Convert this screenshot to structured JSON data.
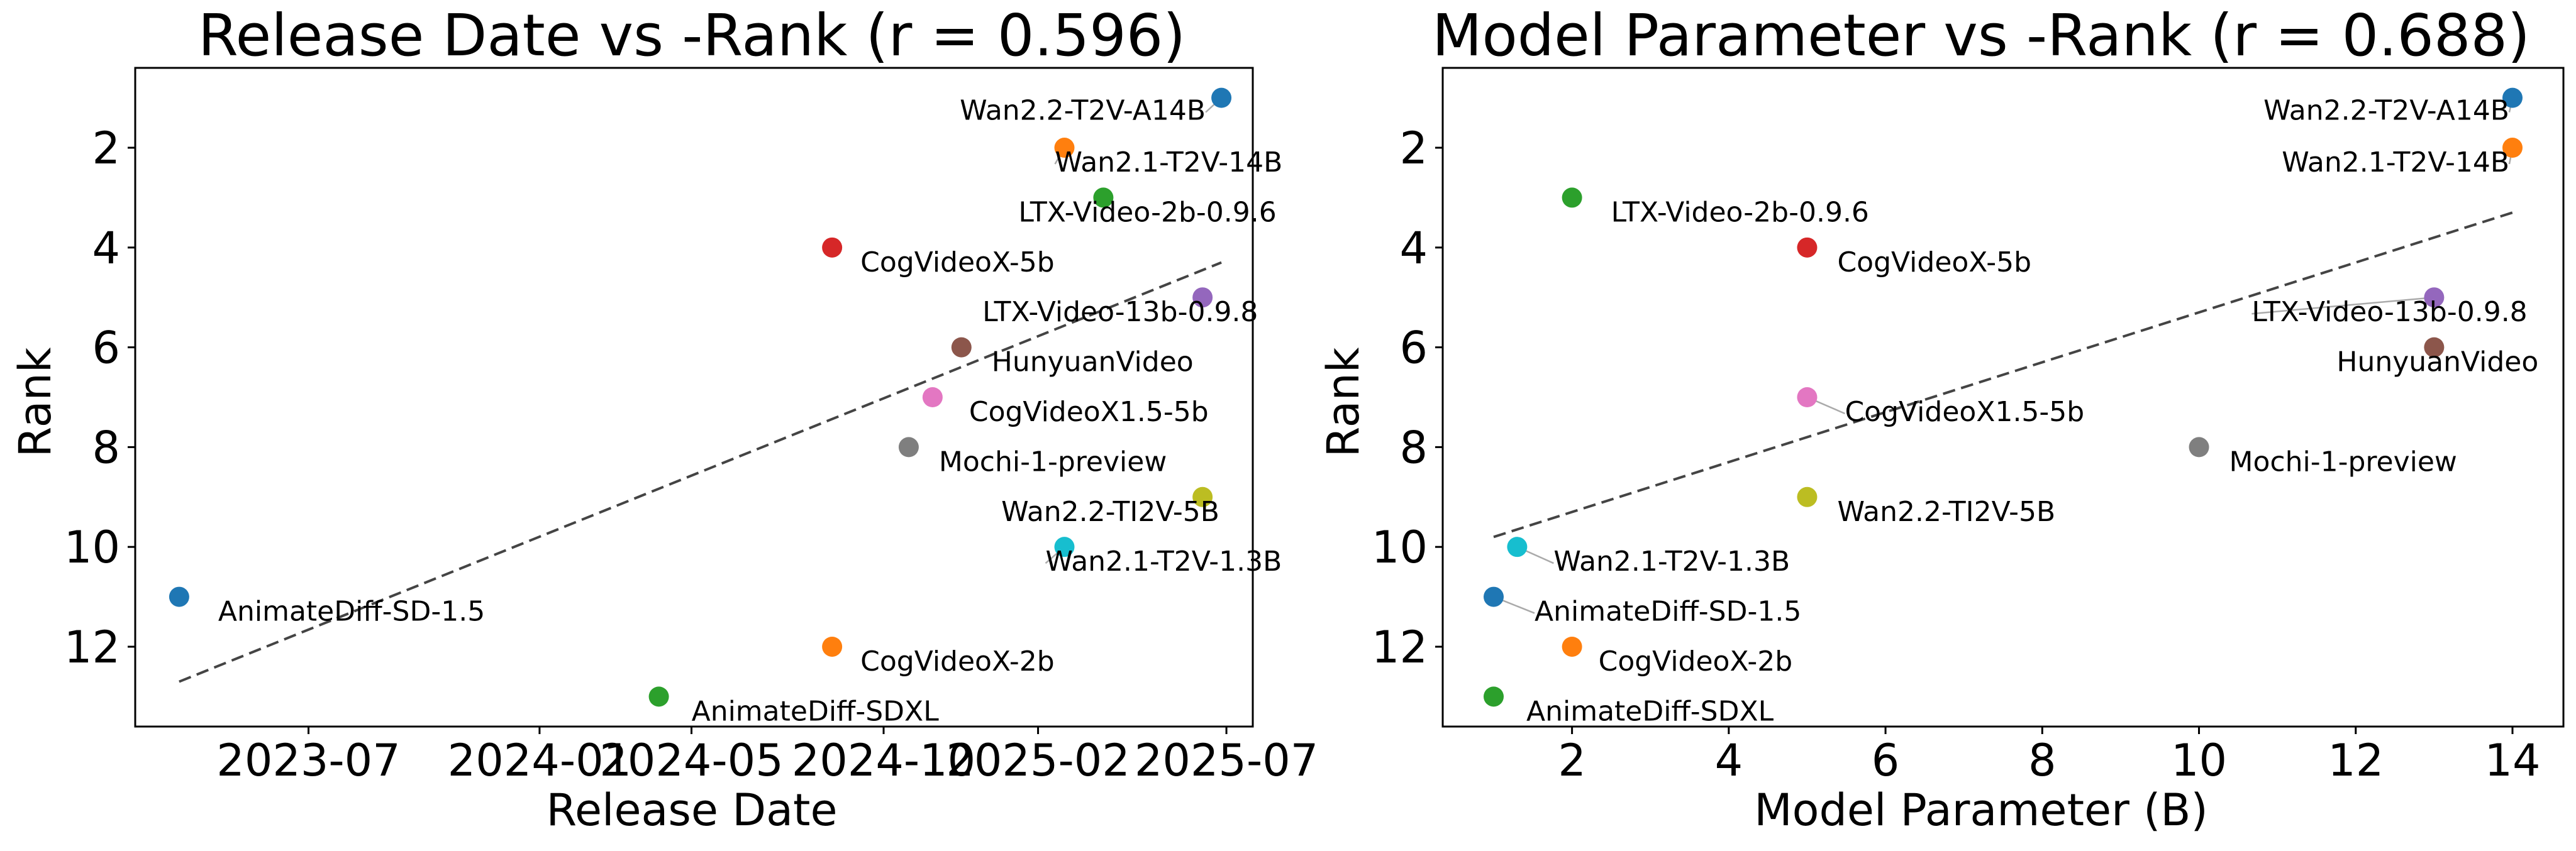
{
  "chart_data": [
    {
      "type": "scatter",
      "title": "Release Date vs -Rank (r = 0.596)",
      "xlabel": "Release Date",
      "ylabel": "Rank",
      "x_axis_type": "date",
      "xlim": [
        "2023-02-13",
        "2025-07-22"
      ],
      "ylim": [
        13.6,
        0.4
      ],
      "y_inverted": true,
      "xticks": [
        "2023-07",
        "2024-01",
        "2024-05",
        "2024-10",
        "2025-02",
        "2025-07"
      ],
      "yticks": [
        2,
        4,
        6,
        8,
        10,
        12
      ],
      "trend_line": {
        "style": "dashed",
        "from": [
          "2023-03-20",
          12.7
        ],
        "to": [
          "2025-06-27",
          4.3
        ]
      },
      "points": [
        {
          "label": "Wan2.2-T2V-A14B",
          "x": "2025-06-27",
          "y": 1,
          "color": "#1f77b4"
        },
        {
          "label": "Wan2.1-T2V-14B",
          "x": "2025-02-22",
          "y": 2,
          "color": "#ff7f0e"
        },
        {
          "label": "LTX-Video-2b-0.9.6",
          "x": "2025-03-25",
          "y": 3,
          "color": "#2ca02c"
        },
        {
          "label": "CogVideoX-5b",
          "x": "2024-08-21",
          "y": 4,
          "color": "#d62728"
        },
        {
          "label": "LTX-Video-13b-0.9.8",
          "x": "2025-06-12",
          "y": 5,
          "color": "#9467bd"
        },
        {
          "label": "HunyuanVideo",
          "x": "2024-12-02",
          "y": 6,
          "color": "#8c564b"
        },
        {
          "label": "CogVideoX1.5-5b",
          "x": "2024-11-09",
          "y": 7,
          "color": "#e377c2"
        },
        {
          "label": "Mochi-1-preview",
          "x": "2024-10-21",
          "y": 8,
          "color": "#7f7f7f"
        },
        {
          "label": "Wan2.2-TI2V-5B",
          "x": "2025-06-12",
          "y": 9,
          "color": "#bcbd22"
        },
        {
          "label": "Wan2.1-T2V-1.3B",
          "x": "2025-02-22",
          "y": 10,
          "color": "#17becf"
        },
        {
          "label": "AnimateDiff-SD-1.5",
          "x": "2023-03-20",
          "y": 11,
          "color": "#1f77b4"
        },
        {
          "label": "CogVideoX-2b",
          "x": "2024-08-21",
          "y": 12,
          "color": "#ff7f0e"
        },
        {
          "label": "AnimateDiff-SDXL",
          "x": "2024-04-05",
          "y": 13,
          "color": "#2ca02c"
        }
      ]
    },
    {
      "type": "scatter",
      "title": "Model Parameter vs -Rank (r = 0.688)",
      "xlabel": "Model Parameter (B)",
      "ylabel": "Rank",
      "xlim": [
        0.35,
        14.65
      ],
      "ylim": [
        13.6,
        0.4
      ],
      "y_inverted": true,
      "xticks": [
        2,
        4,
        6,
        8,
        10,
        12,
        14
      ],
      "yticks": [
        2,
        4,
        6,
        8,
        10,
        12
      ],
      "trend_line": {
        "style": "dashed",
        "from": [
          1.0,
          9.8
        ],
        "to": [
          14.0,
          3.3
        ]
      },
      "points": [
        {
          "label": "Wan2.2-T2V-A14B",
          "x": 14,
          "y": 1,
          "color": "#1f77b4"
        },
        {
          "label": "Wan2.1-T2V-14B",
          "x": 14,
          "y": 2,
          "color": "#ff7f0e"
        },
        {
          "label": "LTX-Video-2b-0.9.6",
          "x": 2,
          "y": 3,
          "color": "#2ca02c"
        },
        {
          "label": "CogVideoX-5b",
          "x": 5,
          "y": 4,
          "color": "#d62728"
        },
        {
          "label": "LTX-Video-13b-0.9.8",
          "x": 13,
          "y": 5,
          "color": "#9467bd"
        },
        {
          "label": "HunyuanVideo",
          "x": 13,
          "y": 6,
          "color": "#8c564b"
        },
        {
          "label": "CogVideoX1.5-5b",
          "x": 5,
          "y": 7,
          "color": "#e377c2"
        },
        {
          "label": "Mochi-1-preview",
          "x": 10,
          "y": 8,
          "color": "#7f7f7f"
        },
        {
          "label": "Wan2.2-TI2V-5B",
          "x": 5,
          "y": 9,
          "color": "#bcbd22"
        },
        {
          "label": "Wan2.1-T2V-1.3B",
          "x": 1.3,
          "y": 10,
          "color": "#17becf"
        },
        {
          "label": "AnimateDiff-SD-1.5",
          "x": 1,
          "y": 11,
          "color": "#1f77b4"
        },
        {
          "label": "CogVideoX-2b",
          "x": 2,
          "y": 12,
          "color": "#ff7f0e"
        },
        {
          "label": "AnimateDiff-SDXL",
          "x": 1,
          "y": 13,
          "color": "#2ca02c"
        }
      ]
    }
  ]
}
